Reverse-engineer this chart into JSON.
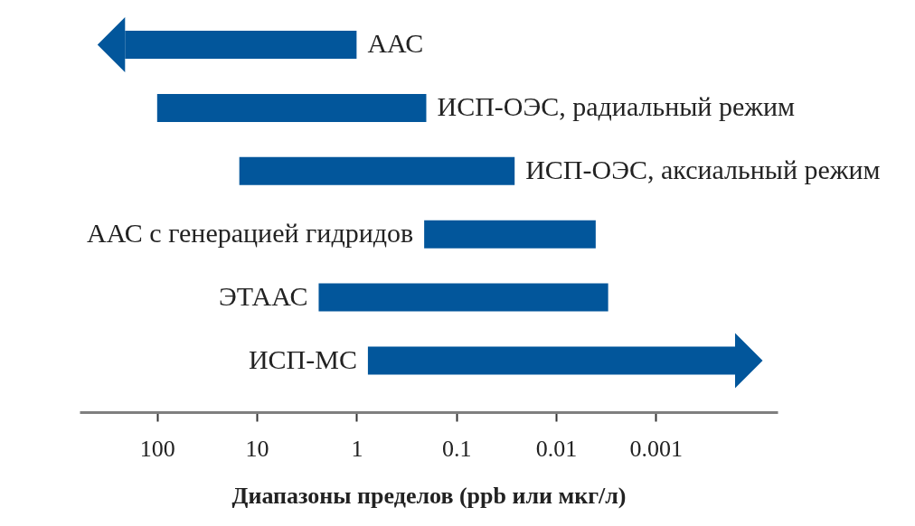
{
  "chart_data": {
    "type": "bar",
    "orientation": "horizontal",
    "log": "x",
    "categories": [
      "ААС",
      "ИСП-ОЭС, радиальный режим",
      "ИСП-ОЭС, аксиальный режим",
      "ААС с генерацией гидридов",
      "ЭТААС",
      "ИСП-МС"
    ],
    "base": [
      1,
      0.2,
      0.026,
      0.004,
      0.003,
      0.00016
    ],
    "values": [
      209,
      99.8,
      14.974,
      0.206,
      2.397,
      0.76984
    ],
    "color": "#02569b",
    "xlim": [
      600,
      6e-05
    ],
    "xticks": [
      100,
      10,
      1,
      0.1,
      0.01,
      0.001
    ],
    "xlabel": "Диапазоны пределов (ppb или мкг/л)"
  }
}
